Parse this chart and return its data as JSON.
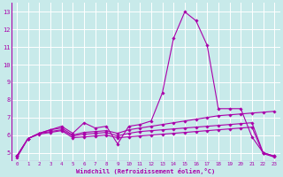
{
  "bg_color": "#c8eaea",
  "line_color": "#aa00aa",
  "grid_color": "#ffffff",
  "xlabel": "Windchill (Refroidissement éolien,°C)",
  "xlim": [
    -0.5,
    23.5
  ],
  "ylim": [
    4.5,
    13.5
  ],
  "yticks": [
    5,
    6,
    7,
    8,
    9,
    10,
    11,
    12,
    13
  ],
  "xticks": [
    0,
    1,
    2,
    3,
    4,
    5,
    6,
    7,
    8,
    9,
    10,
    11,
    12,
    13,
    14,
    15,
    16,
    17,
    18,
    19,
    20,
    21,
    22,
    23
  ],
  "series": [
    [
      4.7,
      5.8,
      6.1,
      6.3,
      6.5,
      6.1,
      6.7,
      6.4,
      6.5,
      5.5,
      6.5,
      6.6,
      6.8,
      8.4,
      11.5,
      13.0,
      12.5,
      11.1,
      7.5,
      7.5,
      7.5,
      5.9,
      5.0,
      4.8
    ],
    [
      4.8,
      5.8,
      6.1,
      6.3,
      6.4,
      6.0,
      6.15,
      6.2,
      6.25,
      6.1,
      6.3,
      6.4,
      6.5,
      6.6,
      6.7,
      6.8,
      6.9,
      7.0,
      7.1,
      7.15,
      7.2,
      7.25,
      7.3,
      7.35
    ],
    [
      4.8,
      5.8,
      6.1,
      6.2,
      6.3,
      5.95,
      6.05,
      6.1,
      6.15,
      5.95,
      6.1,
      6.2,
      6.25,
      6.3,
      6.35,
      6.4,
      6.45,
      6.5,
      6.55,
      6.6,
      6.65,
      6.7,
      5.0,
      4.8
    ],
    [
      4.8,
      5.8,
      6.05,
      6.15,
      6.25,
      5.85,
      5.9,
      5.95,
      6.0,
      5.85,
      5.9,
      5.95,
      6.0,
      6.05,
      6.1,
      6.15,
      6.2,
      6.25,
      6.3,
      6.35,
      6.4,
      6.45,
      4.95,
      4.75
    ]
  ]
}
